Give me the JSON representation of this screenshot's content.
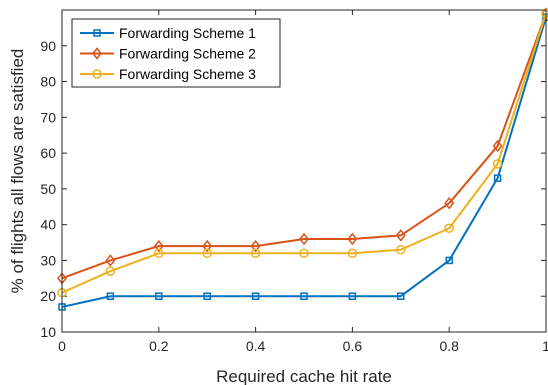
{
  "chart_data": {
    "type": "line",
    "xlabel": "Required cache hit rate",
    "ylabel": "% of  flights all flows are satisfied",
    "x": [
      0,
      0.1,
      0.2,
      0.3,
      0.4,
      0.5,
      0.6,
      0.7,
      0.8,
      0.9,
      1
    ],
    "xlim": [
      0,
      1
    ],
    "ylim": [
      10,
      100
    ],
    "xticks": [
      "0",
      "0.2",
      "0.4",
      "0.6",
      "0.8",
      "1"
    ],
    "yticks": [
      "10",
      "20",
      "30",
      "40",
      "50",
      "60",
      "70",
      "80",
      "90"
    ],
    "grid": false,
    "legend_position": "top-left",
    "series": [
      {
        "name": "Forwarding Scheme  1",
        "color": "#0072BD",
        "marker": "square",
        "values": [
          17,
          20,
          20,
          20,
          20,
          20,
          20,
          20,
          30,
          53,
          98
        ]
      },
      {
        "name": "Forwarding Scheme  2",
        "color": "#D95319",
        "marker": "diamond",
        "values": [
          25,
          30,
          34,
          34,
          34,
          36,
          36,
          37,
          46,
          62,
          99
        ]
      },
      {
        "name": "Forwarding Scheme  3",
        "color": "#EDB120",
        "marker": "circle",
        "values": [
          21,
          27,
          32,
          32,
          32,
          32,
          32,
          33,
          39,
          57,
          99
        ]
      }
    ]
  }
}
